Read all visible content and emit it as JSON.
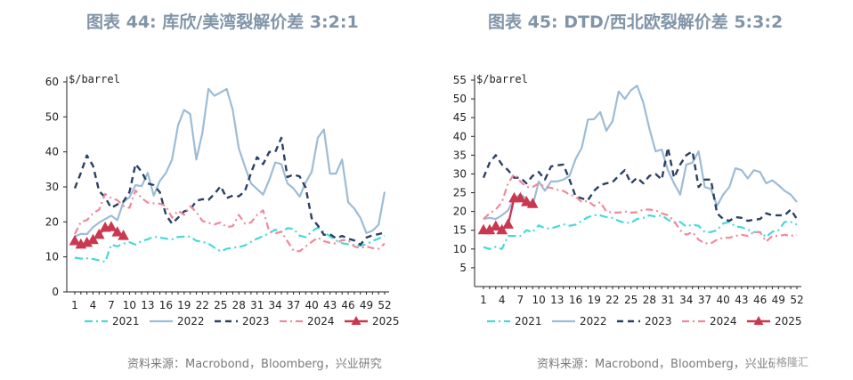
{
  "chart_data": [
    {
      "type": "line",
      "title": "图表 44: 库欣/美湾裂解价差 3:2:1",
      "unit_label": "$/barrel",
      "ylim": [
        0,
        60
      ],
      "yticks": [
        0,
        10,
        20,
        30,
        40,
        50,
        60
      ],
      "xlim": [
        1,
        52
      ],
      "xticks": [
        1,
        4,
        7,
        10,
        13,
        16,
        19,
        22,
        25,
        28,
        31,
        34,
        37,
        40,
        43,
        46,
        49,
        52
      ],
      "legend_position": "bottom",
      "source": "资料来源：Macrobond，Bloomberg，兴业研究",
      "series": [
        {
          "name": "2021",
          "color": "#48d8d8",
          "dash": "9,4,2,4",
          "width": 2.2,
          "marker": "",
          "x": [
            1,
            2,
            3,
            4,
            5,
            6,
            7,
            8,
            9,
            10,
            11,
            12,
            13,
            14,
            15,
            16,
            17,
            18,
            19,
            20,
            21,
            22,
            23,
            24,
            25,
            26,
            27,
            28,
            29,
            30,
            31,
            32,
            33,
            34,
            35,
            36,
            37,
            38,
            39,
            40,
            41,
            42,
            43,
            44,
            45,
            46,
            47,
            48,
            49,
            50,
            51,
            52
          ],
          "y": [
            9.8,
            9.5,
            9.6,
            9.4,
            9.0,
            8.6,
            13.5,
            13.0,
            13.8,
            14.2,
            13.5,
            14.6,
            15.0,
            15.8,
            15.5,
            15.2,
            15.0,
            15.7,
            15.8,
            15.8,
            14.6,
            14.3,
            13.8,
            12.6,
            11.6,
            12.3,
            12.6,
            12.8,
            13.3,
            14.3,
            15.2,
            15.9,
            16.8,
            17.8,
            17.1,
            18.2,
            18.0,
            16.1,
            15.6,
            17.2,
            18.4,
            17.0,
            15.9,
            14.7,
            13.9,
            13.6,
            13.4,
            13.2,
            13.6,
            14.6,
            15.2,
            16.0
          ]
        },
        {
          "name": "2022",
          "color": "#9dbcd6",
          "dash": "",
          "width": 2.2,
          "marker": "",
          "x": [
            1,
            2,
            3,
            4,
            5,
            6,
            7,
            8,
            9,
            10,
            11,
            12,
            13,
            14,
            15,
            16,
            17,
            18,
            19,
            20,
            21,
            22,
            23,
            24,
            25,
            26,
            27,
            28,
            29,
            30,
            31,
            32,
            33,
            34,
            35,
            36,
            37,
            38,
            39,
            40,
            41,
            42,
            43,
            44,
            45,
            46,
            47,
            48,
            49,
            50,
            51,
            52
          ],
          "y": [
            15.8,
            16.6,
            16.5,
            18.5,
            19.8,
            20.8,
            21.8,
            20.5,
            25.7,
            27.0,
            30.5,
            30.2,
            34.0,
            27.5,
            31.7,
            34.0,
            37.8,
            47.6,
            52.0,
            50.8,
            37.8,
            45.4,
            58.0,
            56.0,
            57.0,
            58.0,
            52.0,
            41.0,
            35.8,
            31.0,
            29.4,
            27.8,
            32.0,
            37.0,
            36.5,
            31.0,
            29.6,
            27.2,
            31.3,
            34.3,
            44.0,
            46.4,
            33.8,
            33.8,
            37.8,
            25.6,
            23.8,
            21.2,
            16.8,
            17.5,
            19.2,
            28.6
          ]
        },
        {
          "name": "2023",
          "color": "#2c4063",
          "dash": "7,5",
          "width": 2.4,
          "marker": "",
          "x": [
            1,
            2,
            3,
            4,
            5,
            6,
            7,
            8,
            9,
            10,
            11,
            12,
            13,
            14,
            15,
            16,
            17,
            18,
            19,
            20,
            21,
            22,
            23,
            24,
            25,
            26,
            27,
            28,
            29,
            30,
            31,
            32,
            33,
            34,
            35,
            36,
            37,
            38,
            39,
            40,
            41,
            42,
            43,
            44,
            45,
            46,
            47,
            48,
            49,
            50,
            51,
            52
          ],
          "y": [
            29.6,
            34.0,
            39.0,
            36.0,
            28.8,
            27.0,
            24.0,
            25.0,
            25.8,
            28.5,
            36.5,
            34.3,
            31.0,
            30.5,
            28.5,
            22.0,
            19.5,
            21.2,
            23.0,
            23.5,
            26.0,
            26.5,
            26.3,
            28.0,
            30.2,
            26.8,
            27.5,
            27.3,
            28.8,
            34.0,
            38.5,
            36.5,
            40.0,
            40.0,
            44.0,
            32.8,
            33.5,
            33.0,
            29.8,
            21.0,
            19.0,
            16.3,
            16.5,
            15.3,
            16.0,
            15.2,
            14.7,
            13.5,
            15.5,
            16.2,
            16.5,
            17.0
          ]
        },
        {
          "name": "2024",
          "color": "#ee8a9c",
          "dash": "8,4,2,4",
          "width": 2.2,
          "marker": "",
          "x": [
            1,
            2,
            3,
            4,
            5,
            6,
            7,
            8,
            9,
            10,
            11,
            12,
            13,
            14,
            15,
            16,
            17,
            18,
            19,
            20,
            21,
            22,
            23,
            24,
            25,
            26,
            27,
            28,
            29,
            30,
            31,
            32,
            33,
            34,
            35,
            36,
            37,
            38,
            39,
            40,
            41,
            42,
            43,
            44,
            45,
            46,
            47,
            48,
            49,
            50,
            51,
            52
          ],
          "y": [
            16.5,
            20.0,
            20.5,
            22.5,
            23.5,
            28.0,
            26.8,
            26.2,
            24.5,
            24.0,
            29.0,
            26.8,
            25.5,
            25.3,
            25.2,
            24.5,
            21.2,
            23.2,
            22.0,
            24.5,
            22.8,
            20.3,
            19.7,
            19.3,
            19.8,
            18.5,
            18.8,
            22.0,
            19.5,
            19.8,
            22.0,
            23.3,
            17.2,
            16.7,
            17.2,
            14.5,
            11.8,
            11.6,
            13.0,
            14.3,
            15.5,
            14.5,
            14.0,
            13.8,
            14.8,
            14.7,
            13.0,
            12.5,
            13.0,
            12.5,
            12.3,
            13.8
          ]
        },
        {
          "name": "2025",
          "color": "#c9384f",
          "dash": "",
          "width": 2.4,
          "marker": "triangle",
          "x": [
            1,
            2,
            3,
            4,
            5,
            6,
            7,
            8,
            9
          ],
          "y": [
            14.5,
            13.5,
            14.0,
            14.8,
            16.3,
            18.3,
            18.5,
            17.0,
            16.0
          ]
        }
      ]
    },
    {
      "type": "line",
      "title": "图表 45: DTD/西北欧裂解价差 5:3:2",
      "unit_label": "$/barrel",
      "ylim": [
        0,
        55
      ],
      "yticks": [
        5,
        10,
        15,
        20,
        25,
        30,
        35,
        40,
        45,
        50,
        55
      ],
      "xlim": [
        1,
        52
      ],
      "xticks": [
        1,
        4,
        7,
        10,
        13,
        16,
        19,
        22,
        25,
        28,
        31,
        34,
        37,
        40,
        43,
        46,
        49,
        52
      ],
      "legend_position": "bottom",
      "source": "资料来源：Macrobond，Bloomberg，兴业研究",
      "series": [
        {
          "name": "2021",
          "color": "#48d8d8",
          "dash": "9,4,2,4",
          "width": 2.2,
          "marker": "",
          "x": [
            1,
            2,
            3,
            4,
            5,
            6,
            7,
            8,
            9,
            10,
            11,
            12,
            13,
            14,
            15,
            16,
            17,
            18,
            19,
            20,
            21,
            22,
            23,
            24,
            25,
            26,
            27,
            28,
            29,
            30,
            31,
            32,
            33,
            34,
            35,
            36,
            37,
            38,
            39,
            40,
            41,
            42,
            43,
            44,
            45,
            46,
            47,
            48,
            49,
            50,
            51,
            52
          ],
          "y": [
            10.5,
            10.0,
            10.6,
            10.0,
            13.5,
            13.5,
            13.5,
            15.0,
            14.5,
            16.3,
            15.5,
            15.5,
            16.0,
            16.6,
            16.2,
            16.5,
            17.5,
            18.5,
            19.0,
            19.0,
            18.5,
            18.3,
            17.5,
            17.0,
            17.0,
            18.0,
            18.3,
            19.0,
            18.6,
            19.0,
            17.8,
            17.0,
            17.2,
            16.0,
            16.5,
            16.2,
            14.5,
            14.5,
            15.0,
            16.8,
            17.2,
            16.0,
            15.8,
            15.2,
            14.5,
            14.5,
            13.2,
            14.6,
            15.0,
            17.2,
            17.2,
            16.5
          ]
        },
        {
          "name": "2022",
          "color": "#9dbcd6",
          "dash": "",
          "width": 2.2,
          "marker": "",
          "x": [
            1,
            2,
            3,
            4,
            5,
            6,
            7,
            8,
            9,
            10,
            11,
            12,
            13,
            14,
            15,
            16,
            17,
            18,
            19,
            20,
            21,
            22,
            23,
            24,
            25,
            26,
            27,
            28,
            29,
            30,
            31,
            32,
            33,
            34,
            35,
            36,
            37,
            38,
            39,
            40,
            41,
            42,
            43,
            44,
            45,
            46,
            47,
            48,
            49,
            50,
            51,
            52
          ],
          "y": [
            18.0,
            18.3,
            18.0,
            19.0,
            20.3,
            23.5,
            24.5,
            23.5,
            21.5,
            28.0,
            25.5,
            28.0,
            28.0,
            28.5,
            29.5,
            34.0,
            37.0,
            44.5,
            44.6,
            46.5,
            41.5,
            44.0,
            52.0,
            50.0,
            52.3,
            53.5,
            49.0,
            42.0,
            36.0,
            36.5,
            31.0,
            27.5,
            24.5,
            32.5,
            33.0,
            36.0,
            26.5,
            26.0,
            21.5,
            24.5,
            26.5,
            31.5,
            31.0,
            28.8,
            31.0,
            30.5,
            27.5,
            28.3,
            27.0,
            25.5,
            24.5,
            22.5
          ]
        },
        {
          "name": "2023",
          "color": "#2c4063",
          "dash": "7,5",
          "width": 2.4,
          "marker": "",
          "x": [
            1,
            2,
            3,
            4,
            5,
            6,
            7,
            8,
            9,
            10,
            11,
            12,
            13,
            14,
            15,
            16,
            17,
            18,
            19,
            20,
            21,
            22,
            23,
            24,
            25,
            26,
            27,
            28,
            29,
            30,
            31,
            32,
            33,
            34,
            35,
            36,
            37,
            38,
            39,
            40,
            41,
            42,
            43,
            44,
            45,
            46,
            47,
            48,
            49,
            50,
            51,
            52
          ],
          "y": [
            29.0,
            33.0,
            35.0,
            32.5,
            31.0,
            29.0,
            29.0,
            27.5,
            29.5,
            30.5,
            28.5,
            32.0,
            32.3,
            32.5,
            28.5,
            24.0,
            23.5,
            23.0,
            25.5,
            27.0,
            27.5,
            27.8,
            29.5,
            31.0,
            27.5,
            29.0,
            27.5,
            29.5,
            30.0,
            28.5,
            37.0,
            29.0,
            32.5,
            35.0,
            36.0,
            26.5,
            28.5,
            28.5,
            19.5,
            18.0,
            17.5,
            18.5,
            18.3,
            17.5,
            17.8,
            18.0,
            19.5,
            19.0,
            19.0,
            19.0,
            20.5,
            18.0
          ]
        },
        {
          "name": "2024",
          "color": "#ee8a9c",
          "dash": "8,4,2,4",
          "width": 2.2,
          "marker": "",
          "x": [
            1,
            2,
            3,
            4,
            5,
            6,
            7,
            8,
            9,
            10,
            11,
            12,
            13,
            14,
            15,
            16,
            17,
            18,
            19,
            20,
            21,
            22,
            23,
            24,
            25,
            26,
            27,
            28,
            29,
            30,
            31,
            32,
            33,
            34,
            35,
            36,
            37,
            38,
            39,
            40,
            41,
            42,
            43,
            44,
            45,
            46,
            47,
            48,
            49,
            50,
            51,
            52
          ],
          "y": [
            18.0,
            19.5,
            20.5,
            22.5,
            27.5,
            30.0,
            28.0,
            26.5,
            26.5,
            27.5,
            26.5,
            26.3,
            25.8,
            25.5,
            24.5,
            24.0,
            22.5,
            22.8,
            21.5,
            22.5,
            20.0,
            19.7,
            19.7,
            20.0,
            19.7,
            19.8,
            20.5,
            20.5,
            20.3,
            19.5,
            19.0,
            17.5,
            15.0,
            13.8,
            14.5,
            12.5,
            11.5,
            11.5,
            12.5,
            13.0,
            13.0,
            13.5,
            13.8,
            13.5,
            14.5,
            14.5,
            12.0,
            13.5,
            13.5,
            13.8,
            13.5,
            13.8
          ]
        },
        {
          "name": "2025",
          "color": "#c9384f",
          "dash": "",
          "width": 2.4,
          "marker": "triangle",
          "x": [
            1,
            2,
            3,
            4,
            5,
            6,
            7,
            8,
            9
          ],
          "y": [
            15.0,
            15.0,
            16.0,
            15.0,
            16.5,
            23.5,
            23.5,
            22.5,
            22.0
          ]
        }
      ]
    }
  ],
  "watermark": "格隆汇"
}
